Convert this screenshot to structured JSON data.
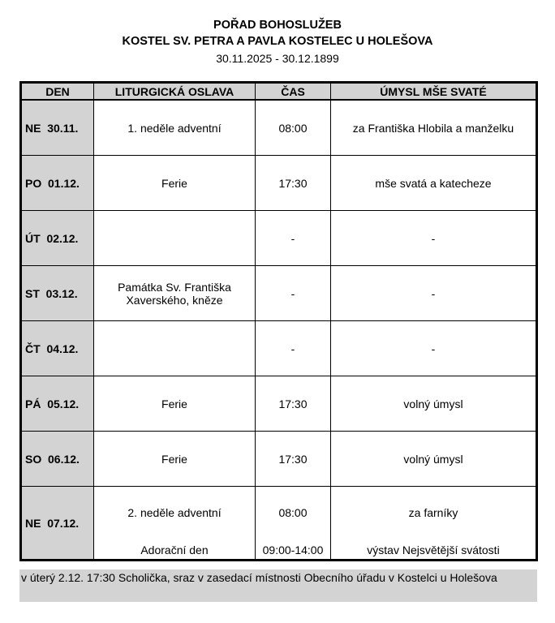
{
  "header": {
    "title": "POŘAD BOHOSLUŽEB",
    "church": "KOSTEL SV. PETRA A PAVLA KOSTELEC U HOLEŠOVA",
    "range": "30.11.2025 - 30.12.1899"
  },
  "columns": [
    "DEN",
    "LITURGICKÁ OSLAVA",
    "ČAS",
    "ÚMYSL MŠE SVATÉ"
  ],
  "rows": [
    {
      "day": "NE  30.11.",
      "celebration": "1. neděle adventní",
      "time": "08:00",
      "intention": "za Františka Hlobila a manželku"
    },
    {
      "day": "PO  01.12.",
      "celebration": "Ferie",
      "time": "17:30",
      "intention": "mše svatá a katecheze"
    },
    {
      "day": "ÚT  02.12.",
      "celebration": "",
      "time": "-",
      "intention": "-"
    },
    {
      "day": "ST  03.12.",
      "celebration": "Památka Sv. Františka Xaverského, kněze",
      "time": "-",
      "intention": "-"
    },
    {
      "day": "ČT  04.12.",
      "celebration": "",
      "time": "-",
      "intention": "-"
    },
    {
      "day": "PÁ  05.12.",
      "celebration": "Ferie",
      "time": "17:30",
      "intention": "volný úmysl"
    },
    {
      "day": "SO  06.12.",
      "celebration": "Ferie",
      "time": "17:30",
      "intention": "volný úmysl"
    },
    {
      "day": "NE  07.12.",
      "celebration": "2. neděle adventní",
      "time": "08:00",
      "intention": "za farníky",
      "celebration2": "Adorační den",
      "time2": "09:00-14:00",
      "intention2": "výstav Nejsvětější svátosti"
    }
  ],
  "note": "v úterý 2.12. 17:30 Scholička, sraz v zasedací místnosti Obecního úřadu v Kostelci u Holešova"
}
